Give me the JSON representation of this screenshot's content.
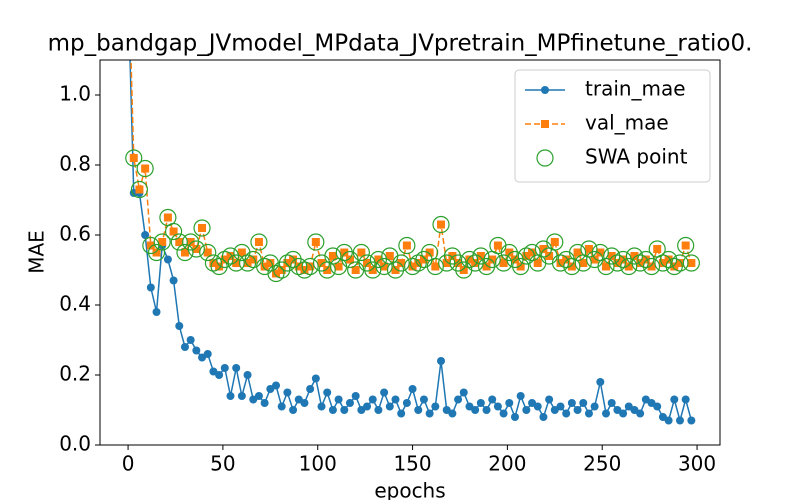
{
  "chart_data": {
    "type": "line",
    "title": "mp_bandgap_JVmodel_MPdata_JVpretrain_MPfinetune_ratio0.",
    "x_label": "epochs",
    "y_label": "MAE",
    "x": [
      0,
      3,
      6,
      9,
      12,
      15,
      18,
      21,
      24,
      27,
      30,
      33,
      36,
      39,
      42,
      45,
      48,
      51,
      54,
      57,
      60,
      63,
      66,
      69,
      72,
      75,
      78,
      81,
      84,
      87,
      90,
      93,
      96,
      99,
      102,
      105,
      108,
      111,
      114,
      117,
      120,
      123,
      126,
      129,
      132,
      135,
      138,
      141,
      144,
      147,
      150,
      153,
      156,
      159,
      162,
      165,
      168,
      171,
      174,
      177,
      180,
      183,
      186,
      189,
      192,
      195,
      198,
      201,
      204,
      207,
      210,
      213,
      216,
      219,
      222,
      225,
      228,
      231,
      234,
      237,
      240,
      243,
      246,
      249,
      252,
      255,
      258,
      261,
      264,
      267,
      270,
      273,
      276,
      279,
      282,
      285,
      288,
      291,
      294,
      297
    ],
    "series": [
      {
        "name": "train_mae",
        "color": "#1f77b4",
        "marker": "circle",
        "dash": false,
        "values": [
          1.3,
          0.72,
          0.72,
          0.6,
          0.45,
          0.38,
          0.57,
          0.53,
          0.47,
          0.34,
          0.28,
          0.3,
          0.27,
          0.25,
          0.26,
          0.21,
          0.2,
          0.22,
          0.14,
          0.22,
          0.14,
          0.2,
          0.13,
          0.14,
          0.12,
          0.16,
          0.17,
          0.11,
          0.15,
          0.1,
          0.13,
          0.12,
          0.16,
          0.19,
          0.11,
          0.15,
          0.1,
          0.13,
          0.1,
          0.12,
          0.14,
          0.1,
          0.11,
          0.13,
          0.1,
          0.15,
          0.11,
          0.13,
          0.09,
          0.12,
          0.16,
          0.1,
          0.13,
          0.09,
          0.11,
          0.24,
          0.1,
          0.09,
          0.13,
          0.15,
          0.11,
          0.1,
          0.12,
          0.1,
          0.13,
          0.11,
          0.09,
          0.12,
          0.08,
          0.14,
          0.1,
          0.12,
          0.11,
          0.08,
          0.13,
          0.1,
          0.11,
          0.09,
          0.12,
          0.1,
          0.12,
          0.09,
          0.11,
          0.18,
          0.09,
          0.12,
          0.1,
          0.09,
          0.11,
          0.1,
          0.09,
          0.13,
          0.12,
          0.11,
          0.08,
          0.07,
          0.13,
          0.07,
          0.13,
          0.07
        ]
      },
      {
        "name": "val_mae",
        "color": "#ff7f0e",
        "marker": "square",
        "dash": true,
        "values": [
          1.4,
          0.82,
          0.73,
          0.79,
          0.57,
          0.55,
          0.58,
          0.65,
          0.61,
          0.58,
          0.55,
          0.58,
          0.56,
          0.62,
          0.55,
          0.52,
          0.51,
          0.53,
          0.54,
          0.52,
          0.55,
          0.52,
          0.53,
          0.58,
          0.51,
          0.52,
          0.49,
          0.5,
          0.52,
          0.53,
          0.51,
          0.5,
          0.51,
          0.58,
          0.52,
          0.5,
          0.54,
          0.51,
          0.55,
          0.53,
          0.5,
          0.55,
          0.52,
          0.5,
          0.53,
          0.51,
          0.54,
          0.5,
          0.52,
          0.57,
          0.51,
          0.52,
          0.53,
          0.55,
          0.51,
          0.63,
          0.52,
          0.54,
          0.52,
          0.5,
          0.53,
          0.52,
          0.54,
          0.51,
          0.53,
          0.57,
          0.52,
          0.55,
          0.53,
          0.51,
          0.54,
          0.55,
          0.52,
          0.56,
          0.54,
          0.58,
          0.52,
          0.53,
          0.51,
          0.55,
          0.52,
          0.56,
          0.53,
          0.55,
          0.51,
          0.54,
          0.52,
          0.53,
          0.51,
          0.54,
          0.52,
          0.53,
          0.51,
          0.56,
          0.52,
          0.53,
          0.51,
          0.52,
          0.57,
          0.52
        ]
      },
      {
        "name": "SWA point",
        "color": "#2ca02c",
        "marker": "hollow-circle",
        "scatter": true,
        "values": [
          1.4,
          0.82,
          0.73,
          0.79,
          0.57,
          0.55,
          0.58,
          0.65,
          0.61,
          0.58,
          0.55,
          0.58,
          0.56,
          0.62,
          0.55,
          0.52,
          0.51,
          0.53,
          0.54,
          0.52,
          0.55,
          0.52,
          0.53,
          0.58,
          0.51,
          0.52,
          0.49,
          0.5,
          0.52,
          0.53,
          0.51,
          0.5,
          0.51,
          0.58,
          0.52,
          0.5,
          0.54,
          0.51,
          0.55,
          0.53,
          0.5,
          0.55,
          0.52,
          0.5,
          0.53,
          0.51,
          0.54,
          0.5,
          0.52,
          0.57,
          0.51,
          0.52,
          0.53,
          0.55,
          0.51,
          0.63,
          0.52,
          0.54,
          0.52,
          0.5,
          0.53,
          0.52,
          0.54,
          0.51,
          0.53,
          0.57,
          0.52,
          0.55,
          0.53,
          0.51,
          0.54,
          0.55,
          0.52,
          0.56,
          0.54,
          0.58,
          0.52,
          0.53,
          0.51,
          0.55,
          0.52,
          0.56,
          0.53,
          0.55,
          0.51,
          0.54,
          0.52,
          0.53,
          0.51,
          0.54,
          0.52,
          0.53,
          0.51,
          0.56,
          0.52,
          0.53,
          0.51,
          0.52,
          0.57,
          0.52
        ]
      }
    ],
    "xlim": [
      -14.8,
      312.1
    ],
    "xticks": [
      0,
      50,
      100,
      150,
      200,
      250,
      300
    ],
    "ylim": [
      0,
      1.1
    ],
    "yticks": [
      {
        "value": 0,
        "label": "0.0"
      },
      0.2,
      0.4,
      0.6,
      0.8,
      {
        "value": 1,
        "label": "1.0"
      }
    ],
    "legend": "upper right"
  }
}
